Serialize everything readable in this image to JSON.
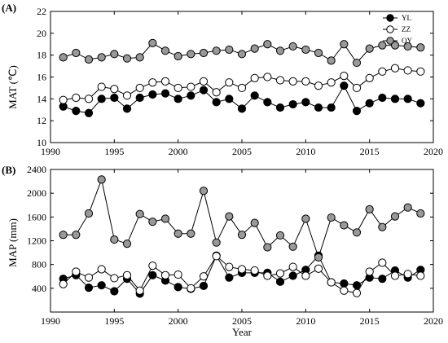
{
  "chart_data": [
    {
      "type": "line",
      "panel_label": "(A)",
      "ylabel": "MAT (℃)",
      "xlabel": "",
      "xlim": [
        1990,
        2020
      ],
      "ylim": [
        10,
        22
      ],
      "x_ticks": [
        1990,
        1995,
        2000,
        2005,
        2010,
        2015,
        2020
      ],
      "y_ticks": [
        10,
        12,
        14,
        16,
        18,
        20,
        22
      ],
      "legend_position": "top-right",
      "x": [
        1991,
        1992,
        1993,
        1994,
        1995,
        1996,
        1997,
        1998,
        1999,
        2000,
        2001,
        2002,
        2003,
        2004,
        2005,
        2006,
        2007,
        2008,
        2009,
        2010,
        2011,
        2012,
        2013,
        2014,
        2015,
        2016,
        2017,
        2018,
        2019
      ],
      "series": [
        {
          "name": "YL",
          "marker_fill": "#000000",
          "values": [
            13.3,
            12.9,
            12.7,
            14.0,
            14.1,
            13.1,
            14.1,
            14.4,
            14.5,
            14.0,
            14.3,
            14.8,
            13.7,
            14.0,
            13.1,
            14.3,
            13.7,
            13.2,
            13.5,
            13.7,
            13.2,
            13.2,
            15.2,
            12.9,
            13.6,
            14.1,
            14.0,
            14.0,
            13.6
          ]
        },
        {
          "name": "ZZ",
          "marker_fill": "#ffffff",
          "values": [
            13.9,
            14.1,
            14.0,
            15.1,
            14.9,
            14.3,
            15.0,
            15.5,
            15.6,
            15.0,
            15.1,
            15.6,
            14.6,
            15.5,
            15.0,
            15.9,
            16.0,
            15.7,
            15.6,
            15.6,
            15.2,
            15.5,
            16.1,
            15.0,
            15.9,
            16.5,
            16.8,
            16.6,
            16.5
          ]
        },
        {
          "name": "QY",
          "marker_fill": "#999999",
          "values": [
            17.8,
            18.2,
            17.6,
            17.8,
            18.1,
            17.7,
            17.8,
            19.1,
            18.4,
            17.9,
            18.1,
            18.2,
            18.4,
            18.5,
            18.1,
            18.6,
            19.0,
            18.4,
            18.8,
            18.5,
            18.2,
            17.5,
            19.0,
            17.3,
            18.6,
            18.9,
            18.9,
            18.8,
            18.7
          ]
        }
      ]
    },
    {
      "type": "line",
      "panel_label": "(B)",
      "ylabel": "MAP (mm)",
      "xlabel": "Year",
      "xlim": [
        1990,
        2020
      ],
      "ylim": [
        0,
        2400
      ],
      "x_ticks": [
        1990,
        1995,
        2000,
        2005,
        2010,
        2015,
        2020
      ],
      "y_ticks": [
        400,
        800,
        1200,
        1600,
        2000,
        2400
      ],
      "x": [
        1991,
        1992,
        1993,
        1994,
        1995,
        1996,
        1997,
        1998,
        1999,
        2000,
        2001,
        2002,
        2003,
        2004,
        2005,
        2006,
        2007,
        2008,
        2009,
        2010,
        2011,
        2012,
        2013,
        2014,
        2015,
        2016,
        2017,
        2018,
        2019
      ],
      "series": [
        {
          "name": "YL",
          "marker_fill": "#000000",
          "values": [
            560,
            620,
            410,
            450,
            350,
            560,
            310,
            620,
            530,
            420,
            390,
            440,
            950,
            580,
            660,
            660,
            660,
            510,
            610,
            710,
            950,
            500,
            480,
            450,
            580,
            560,
            700,
            580,
            710
          ]
        },
        {
          "name": "ZZ",
          "marker_fill": "#ffffff",
          "values": [
            470,
            680,
            580,
            720,
            570,
            620,
            360,
            780,
            620,
            630,
            400,
            600,
            940,
            760,
            720,
            700,
            610,
            650,
            760,
            610,
            730,
            500,
            360,
            320,
            680,
            830,
            610,
            640,
            610
          ]
        },
        {
          "name": "QY",
          "marker_fill": "#999999",
          "values": [
            1300,
            1300,
            1660,
            2230,
            1220,
            1150,
            1650,
            1520,
            1570,
            1320,
            1320,
            2040,
            1170,
            1610,
            1300,
            1500,
            1090,
            1290,
            1100,
            1570,
            920,
            1590,
            1460,
            1340,
            1730,
            1430,
            1610,
            1760,
            1660
          ]
        }
      ]
    }
  ]
}
